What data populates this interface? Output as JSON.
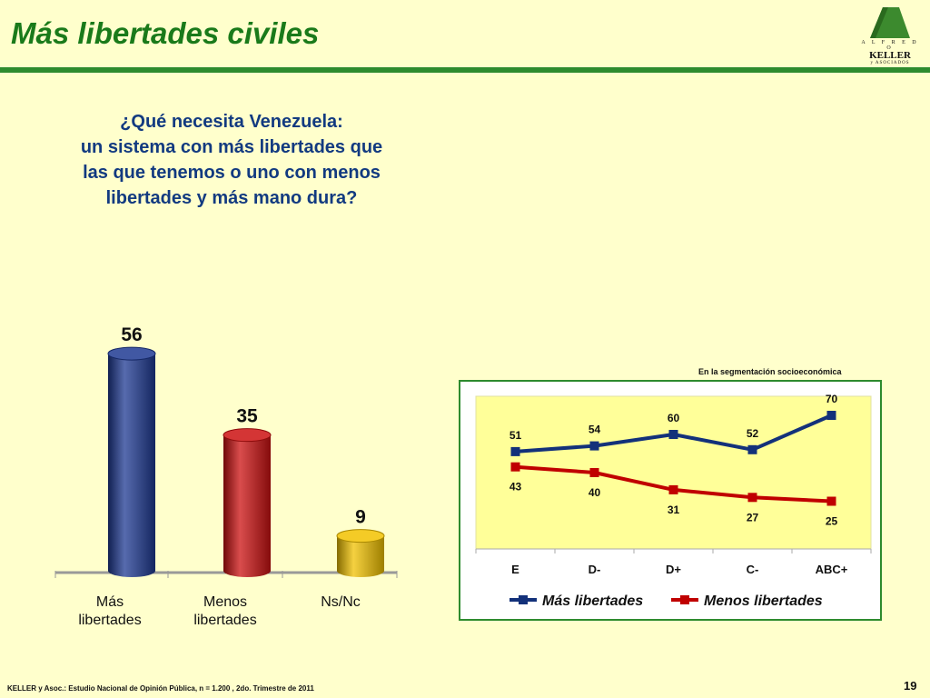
{
  "slide": {
    "title": "Más libertades civiles",
    "question_lines": [
      "¿Qué necesita Venezuela:",
      "un sistema con más libertades que",
      "las que tenemos o uno con menos",
      "libertades y más mano dura?"
    ],
    "footer": "KELLER y Asoc.: Estudio Nacional de Opinión Pública, n = 1.200 , 2do. Trimestre de 2011",
    "page_number": "19",
    "logo": {
      "line1": "A L F R E D O",
      "line2": "KELLER",
      "line3": "y  ASOCIADOS",
      "icon": "keller-mountain-logo"
    }
  },
  "chart_data": [
    {
      "type": "bar",
      "categories": [
        [
          "Más",
          "libertades"
        ],
        [
          "Menos",
          "libertades"
        ],
        [
          "Ns/Nc"
        ]
      ],
      "values": [
        56,
        35,
        9
      ],
      "colors": [
        "#1f3a93",
        "#cc1111",
        "#f2c200"
      ],
      "ylim": [
        0,
        60
      ]
    },
    {
      "type": "line",
      "annotation": "En la segmentación socioeconómica",
      "categories": [
        "E",
        "D-",
        "D+",
        "C-",
        "ABC+"
      ],
      "series": [
        {
          "name": "Más libertades",
          "values": [
            51,
            54,
            60,
            52,
            70
          ],
          "color": "#13317a"
        },
        {
          "name": "Menos libertades",
          "values": [
            43,
            40,
            31,
            27,
            25
          ],
          "color": "#c00000"
        }
      ],
      "ylim": [
        0,
        80
      ],
      "plot_background": "#ffff99",
      "legend_position": "bottom"
    }
  ]
}
